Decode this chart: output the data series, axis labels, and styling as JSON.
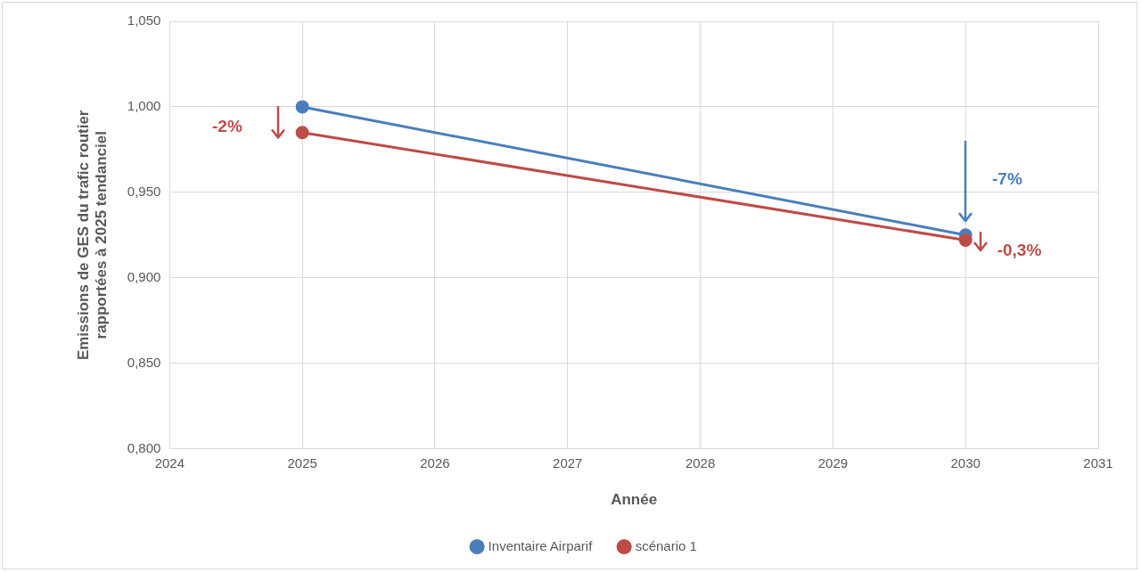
{
  "chart_data": {
    "type": "line",
    "xlabel": "Année",
    "ylabel": "Emissions de GES du trafic routier\nrapportées à 2025 tendanciel",
    "x": [
      2025,
      2030
    ],
    "series": [
      {
        "name": "Inventaire Airparif",
        "color": "#4a7ebb",
        "values": [
          1.0,
          0.925
        ]
      },
      {
        "name": "scénario 1",
        "color": "#be4b48",
        "values": [
          0.985,
          0.922
        ]
      }
    ],
    "xlim": [
      2024,
      2031
    ],
    "xticks": [
      2024,
      2025,
      2026,
      2027,
      2028,
      2029,
      2030,
      2031
    ],
    "ylim": [
      0.8,
      1.05
    ],
    "yticks": [
      {
        "value": 0.8,
        "label": "0,800"
      },
      {
        "value": 0.85,
        "label": "0,850"
      },
      {
        "value": 0.9,
        "label": "0,900"
      },
      {
        "value": 0.95,
        "label": "0,950"
      },
      {
        "value": 1.0,
        "label": "1,000"
      },
      {
        "value": 1.05,
        "label": "1,050"
      }
    ],
    "annotations": [
      "-2%",
      "-7%",
      "-0,3%"
    ],
    "grid": true,
    "legend": "bottom",
    "marker": "circle",
    "line_style": "solid"
  }
}
